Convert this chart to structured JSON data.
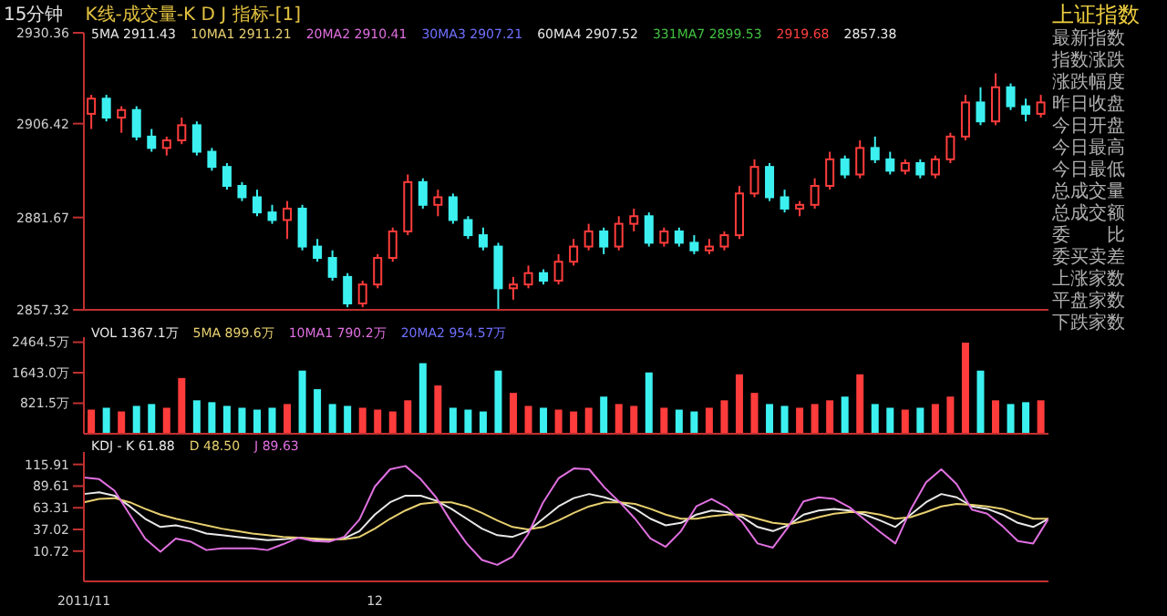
{
  "chart_data": [
    {
      "type": "candlestick",
      "title": "15分钟",
      "subtitle": "K线-成交量-K D J 指标-[1]",
      "categories": [
        null,
        null,
        null,
        null,
        null,
        null,
        null,
        null,
        null,
        null,
        null,
        null,
        null,
        null,
        null,
        null,
        null,
        null,
        null,
        null,
        null,
        null,
        null,
        null,
        null,
        null,
        null,
        null,
        null,
        null,
        null,
        null,
        null,
        null,
        null,
        null,
        null,
        null,
        null,
        null,
        null,
        null,
        null,
        null,
        null,
        null,
        null,
        null,
        null,
        null,
        null,
        null,
        null,
        null,
        null,
        null,
        null,
        null,
        null,
        null,
        null,
        null,
        null,
        null
      ],
      "ohlc": [
        [
          2909,
          2914,
          2905,
          2913
        ],
        [
          2913,
          2914,
          2907,
          2908
        ],
        [
          2908,
          2911,
          2904,
          2910
        ],
        [
          2910,
          2911,
          2902,
          2903
        ],
        [
          2903,
          2905,
          2899,
          2900
        ],
        [
          2900,
          2903,
          2898,
          2902
        ],
        [
          2902,
          2908,
          2901,
          2906
        ],
        [
          2906,
          2907,
          2898,
          2899
        ],
        [
          2899,
          2900,
          2894,
          2895
        ],
        [
          2895,
          2896,
          2889,
          2890
        ],
        [
          2890,
          2891,
          2886,
          2887
        ],
        [
          2887,
          2889,
          2882,
          2883
        ],
        [
          2883,
          2885,
          2880,
          2881
        ],
        [
          2881,
          2886,
          2876,
          2884
        ],
        [
          2884,
          2885,
          2873,
          2874
        ],
        [
          2874,
          2876,
          2870,
          2871
        ],
        [
          2871,
          2873,
          2865,
          2866
        ],
        [
          2866,
          2867,
          2858,
          2859
        ],
        [
          2859,
          2865,
          2858,
          2864
        ],
        [
          2864,
          2872,
          2863,
          2871
        ],
        [
          2871,
          2879,
          2870,
          2878
        ],
        [
          2878,
          2893,
          2877,
          2891
        ],
        [
          2891,
          2892,
          2884,
          2885
        ],
        [
          2885,
          2889,
          2882,
          2887
        ],
        [
          2887,
          2888,
          2880,
          2881
        ],
        [
          2881,
          2882,
          2876,
          2877
        ],
        [
          2877,
          2879,
          2873,
          2874
        ],
        [
          2874,
          2875,
          2857.38,
          2863
        ],
        [
          2863,
          2866,
          2860,
          2864
        ],
        [
          2864,
          2869,
          2863,
          2867
        ],
        [
          2867,
          2868,
          2864,
          2865
        ],
        [
          2865,
          2872,
          2864,
          2870
        ],
        [
          2870,
          2876,
          2869,
          2874
        ],
        [
          2874,
          2880,
          2873,
          2878
        ],
        [
          2878,
          2879,
          2872,
          2874
        ],
        [
          2874,
          2882,
          2873,
          2880
        ],
        [
          2880,
          2884,
          2878,
          2882
        ],
        [
          2882,
          2883,
          2874,
          2875
        ],
        [
          2875,
          2879,
          2874,
          2878
        ],
        [
          2878,
          2879,
          2874,
          2875
        ],
        [
          2875,
          2877,
          2872,
          2873
        ],
        [
          2873,
          2876,
          2872,
          2874
        ],
        [
          2874,
          2878,
          2873,
          2877
        ],
        [
          2877,
          2890,
          2876,
          2888
        ],
        [
          2888,
          2897,
          2887,
          2895
        ],
        [
          2895,
          2896,
          2886,
          2887
        ],
        [
          2887,
          2889,
          2883,
          2884
        ],
        [
          2884,
          2886,
          2882,
          2885
        ],
        [
          2885,
          2892,
          2884,
          2890
        ],
        [
          2890,
          2899,
          2889,
          2897
        ],
        [
          2897,
          2898,
          2892,
          2893
        ],
        [
          2893,
          2902,
          2892,
          2900
        ],
        [
          2900,
          2903,
          2896,
          2897
        ],
        [
          2897,
          2899,
          2893,
          2894
        ],
        [
          2894,
          2897,
          2893,
          2896
        ],
        [
          2896,
          2897,
          2892,
          2893
        ],
        [
          2893,
          2898,
          2892,
          2897
        ],
        [
          2897,
          2904,
          2896,
          2903
        ],
        [
          2903,
          2914,
          2902,
          2912
        ],
        [
          2912,
          2916,
          2906,
          2907
        ],
        [
          2907,
          2919.68,
          2906,
          2916
        ],
        [
          2916,
          2917,
          2910,
          2911
        ],
        [
          2911,
          2913,
          2907,
          2909
        ],
        [
          2909,
          2914,
          2908,
          2912
        ]
      ],
      "colors": [
        "#ff3c3c",
        "#3cf0f0",
        "#ff3c3c",
        "#3cf0f0",
        "#3cf0f0",
        "#ff3c3c",
        "#ff3c3c",
        "#3cf0f0",
        "#3cf0f0",
        "#3cf0f0",
        "#3cf0f0",
        "#3cf0f0",
        "#3cf0f0",
        "#ff3c3c",
        "#3cf0f0",
        "#3cf0f0",
        "#3cf0f0",
        "#3cf0f0",
        "#ff3c3c",
        "#ff3c3c",
        "#ff3c3c",
        "#ff3c3c",
        "#3cf0f0",
        "#ff3c3c",
        "#3cf0f0",
        "#3cf0f0",
        "#3cf0f0",
        "#3cf0f0",
        "#ff3c3c",
        "#ff3c3c",
        "#3cf0f0",
        "#ff3c3c",
        "#ff3c3c",
        "#ff3c3c",
        "#3cf0f0",
        "#ff3c3c",
        "#ff3c3c",
        "#3cf0f0",
        "#ff3c3c",
        "#3cf0f0",
        "#3cf0f0",
        "#ff3c3c",
        "#ff3c3c",
        "#ff3c3c",
        "#ff3c3c",
        "#3cf0f0",
        "#3cf0f0",
        "#ff3c3c",
        "#ff3c3c",
        "#ff3c3c",
        "#3cf0f0",
        "#ff3c3c",
        "#3cf0f0",
        "#3cf0f0",
        "#ff3c3c",
        "#3cf0f0",
        "#ff3c3c",
        "#ff3c3c",
        "#ff3c3c",
        "#3cf0f0",
        "#ff3c3c",
        "#3cf0f0",
        "#3cf0f0",
        "#ff3c3c"
      ],
      "ylim": [
        2857.32,
        2930.36
      ],
      "yticks": [
        2857.32,
        2881.67,
        2906.42,
        2930.36
      ],
      "tick_labels": "y",
      "annotations": [
        "5MA 2911.43",
        "10MA1 2911.21",
        "20MA2 2910.41",
        "30MA3 2907.21",
        "60MA4 2907.52",
        "331MA7 2899.53",
        "2919.68",
        "2857.38"
      ]
    },
    {
      "type": "bar",
      "categories": [
        null,
        null,
        null,
        null,
        null,
        null,
        null,
        null,
        null,
        null,
        null,
        null,
        null,
        null,
        null,
        null,
        null,
        null,
        null,
        null,
        null,
        null,
        null,
        null,
        null,
        null,
        null,
        null,
        null,
        null,
        null,
        null,
        null,
        null,
        null,
        null,
        null,
        null,
        null,
        null,
        null,
        null,
        null,
        null,
        null,
        null,
        null,
        null,
        null,
        null,
        null,
        null,
        null,
        null,
        null,
        null,
        null,
        null,
        null,
        null,
        null,
        null,
        null,
        null
      ],
      "values": [
        650,
        700,
        600,
        750,
        800,
        700,
        1500,
        900,
        850,
        750,
        700,
        650,
        700,
        800,
        1700,
        1200,
        800,
        750,
        700,
        650,
        600,
        900,
        1900,
        1300,
        700,
        650,
        600,
        1700,
        1100,
        750,
        700,
        650,
        600,
        700,
        1000,
        800,
        750,
        1650,
        700,
        650,
        600,
        700,
        900,
        1600,
        1100,
        800,
        750,
        700,
        800,
        900,
        1000,
        1600,
        800,
        700,
        650,
        700,
        800,
        1000,
        2450,
        1700,
        900,
        800,
        850,
        900
      ],
      "colors": [
        "#ff3c3c",
        "#3cf0f0",
        "#ff3c3c",
        "#3cf0f0",
        "#3cf0f0",
        "#ff3c3c",
        "#ff3c3c",
        "#3cf0f0",
        "#3cf0f0",
        "#3cf0f0",
        "#3cf0f0",
        "#3cf0f0",
        "#3cf0f0",
        "#ff3c3c",
        "#3cf0f0",
        "#3cf0f0",
        "#3cf0f0",
        "#3cf0f0",
        "#ff3c3c",
        "#ff3c3c",
        "#ff3c3c",
        "#ff3c3c",
        "#3cf0f0",
        "#ff3c3c",
        "#3cf0f0",
        "#3cf0f0",
        "#3cf0f0",
        "#3cf0f0",
        "#ff3c3c",
        "#ff3c3c",
        "#3cf0f0",
        "#ff3c3c",
        "#ff3c3c",
        "#ff3c3c",
        "#3cf0f0",
        "#ff3c3c",
        "#ff3c3c",
        "#3cf0f0",
        "#ff3c3c",
        "#3cf0f0",
        "#3cf0f0",
        "#ff3c3c",
        "#ff3c3c",
        "#ff3c3c",
        "#ff3c3c",
        "#3cf0f0",
        "#3cf0f0",
        "#ff3c3c",
        "#ff3c3c",
        "#ff3c3c",
        "#3cf0f0",
        "#ff3c3c",
        "#3cf0f0",
        "#3cf0f0",
        "#ff3c3c",
        "#3cf0f0",
        "#ff3c3c",
        "#ff3c3c",
        "#ff3c3c",
        "#3cf0f0",
        "#ff3c3c",
        "#3cf0f0",
        "#3cf0f0",
        "#ff3c3c"
      ],
      "ylim": [
        0,
        2600
      ],
      "yticks": [
        {
          "value": 821.5,
          "label": "821.5万"
        },
        {
          "value": 1643,
          "label": "1643.0万"
        },
        {
          "value": 2464.5,
          "label": "2464.5万"
        }
      ],
      "tick_labels": "y",
      "annotations": [
        "VOL 1367.1万",
        "5MA 899.6万",
        "10MA1 790.2万",
        "20MA2 954.57万"
      ]
    },
    {
      "type": "line",
      "categories": [
        "2011/11",
        null,
        null,
        null,
        null,
        null,
        null,
        null,
        null,
        null,
        null,
        null,
        null,
        null,
        null,
        null,
        null,
        null,
        null,
        "12",
        null,
        null,
        null,
        null,
        null,
        null,
        null,
        null,
        null,
        null,
        null,
        null,
        null,
        null,
        null,
        null,
        null,
        null,
        null,
        null,
        null,
        null,
        null,
        null,
        null,
        null,
        null,
        null,
        null,
        null,
        null,
        null,
        null,
        null,
        null,
        null,
        null,
        null,
        null,
        null,
        null,
        null,
        null,
        null
      ],
      "series": [
        {
          "color": "#e8e8e8",
          "values": [
            80,
            82,
            78,
            65,
            50,
            40,
            42,
            38,
            32,
            30,
            28,
            26,
            24,
            25,
            27,
            25,
            24,
            26,
            35,
            55,
            70,
            78,
            78,
            72,
            62,
            50,
            38,
            30,
            28,
            35,
            50,
            65,
            75,
            80,
            76,
            70,
            62,
            50,
            42,
            45,
            55,
            60,
            58,
            52,
            40,
            35,
            42,
            55,
            60,
            62,
            60,
            55,
            48,
            40,
            55,
            70,
            80,
            76,
            65,
            62,
            55,
            45,
            40,
            50
          ]
        },
        {
          "color": "#e8d070",
          "values": [
            70,
            74,
            75,
            70,
            62,
            55,
            50,
            46,
            42,
            38,
            35,
            32,
            30,
            28,
            27,
            26,
            25,
            25,
            28,
            38,
            50,
            60,
            68,
            70,
            70,
            65,
            57,
            48,
            40,
            37,
            40,
            48,
            57,
            65,
            70,
            70,
            68,
            62,
            55,
            50,
            50,
            53,
            55,
            55,
            50,
            45,
            43,
            47,
            52,
            56,
            58,
            58,
            55,
            50,
            52,
            58,
            65,
            68,
            67,
            65,
            62,
            56,
            50,
            50
          ]
        },
        {
          "color": "#e070e0",
          "values": [
            100,
            98,
            84,
            55,
            26,
            10,
            26,
            22,
            12,
            14,
            14,
            14,
            12,
            19,
            27,
            23,
            22,
            28,
            49,
            89,
            110,
            114,
            98,
            76,
            46,
            20,
            0,
            -6,
            4,
            31,
            70,
            99,
            111,
            110,
            88,
            70,
            50,
            26,
            16,
            35,
            65,
            74,
            64,
            46,
            20,
            15,
            40,
            71,
            76,
            74,
            64,
            49,
            34,
            20,
            61,
            94,
            110,
            92,
            61,
            56,
            41,
            23,
            20,
            50
          ]
        }
      ],
      "ylim": [
        -26,
        131
      ],
      "yticks": [
        10.72,
        37.02,
        63.31,
        89.61,
        115.91
      ],
      "annotations": [
        "KDJ - K 61.88",
        "D 48.50",
        "J 89.63"
      ]
    },
    {
      "type": "other",
      "title": "上证指数",
      "annotations": [
        "最新指数",
        "指数涨跌",
        "涨跌幅度",
        "昨日收盘",
        "今日开盘",
        "今日最高",
        "今日最低",
        "总成交量",
        "总成交额",
        "委　　比",
        "委买卖差",
        "上涨家数",
        "平盘家数",
        "下跌家数"
      ]
    }
  ]
}
